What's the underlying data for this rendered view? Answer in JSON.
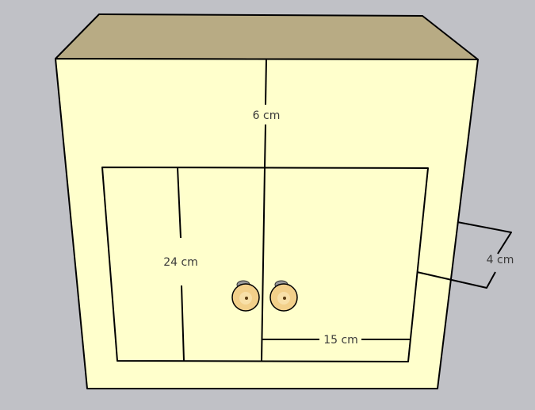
{
  "colors": {
    "background": "#c0c1c6",
    "cabinet_front": "#ffffcc",
    "cabinet_top": "#b8ab84",
    "cabinet_side": "#f4f4c2",
    "edge": "#000000",
    "knob": "#f2d08a",
    "knob_stem": "#9a9a9a"
  },
  "dimensions": {
    "top_gap": "6 cm",
    "door_height": "24 cm",
    "door_width": "15 cm",
    "depth": "4 cm"
  }
}
